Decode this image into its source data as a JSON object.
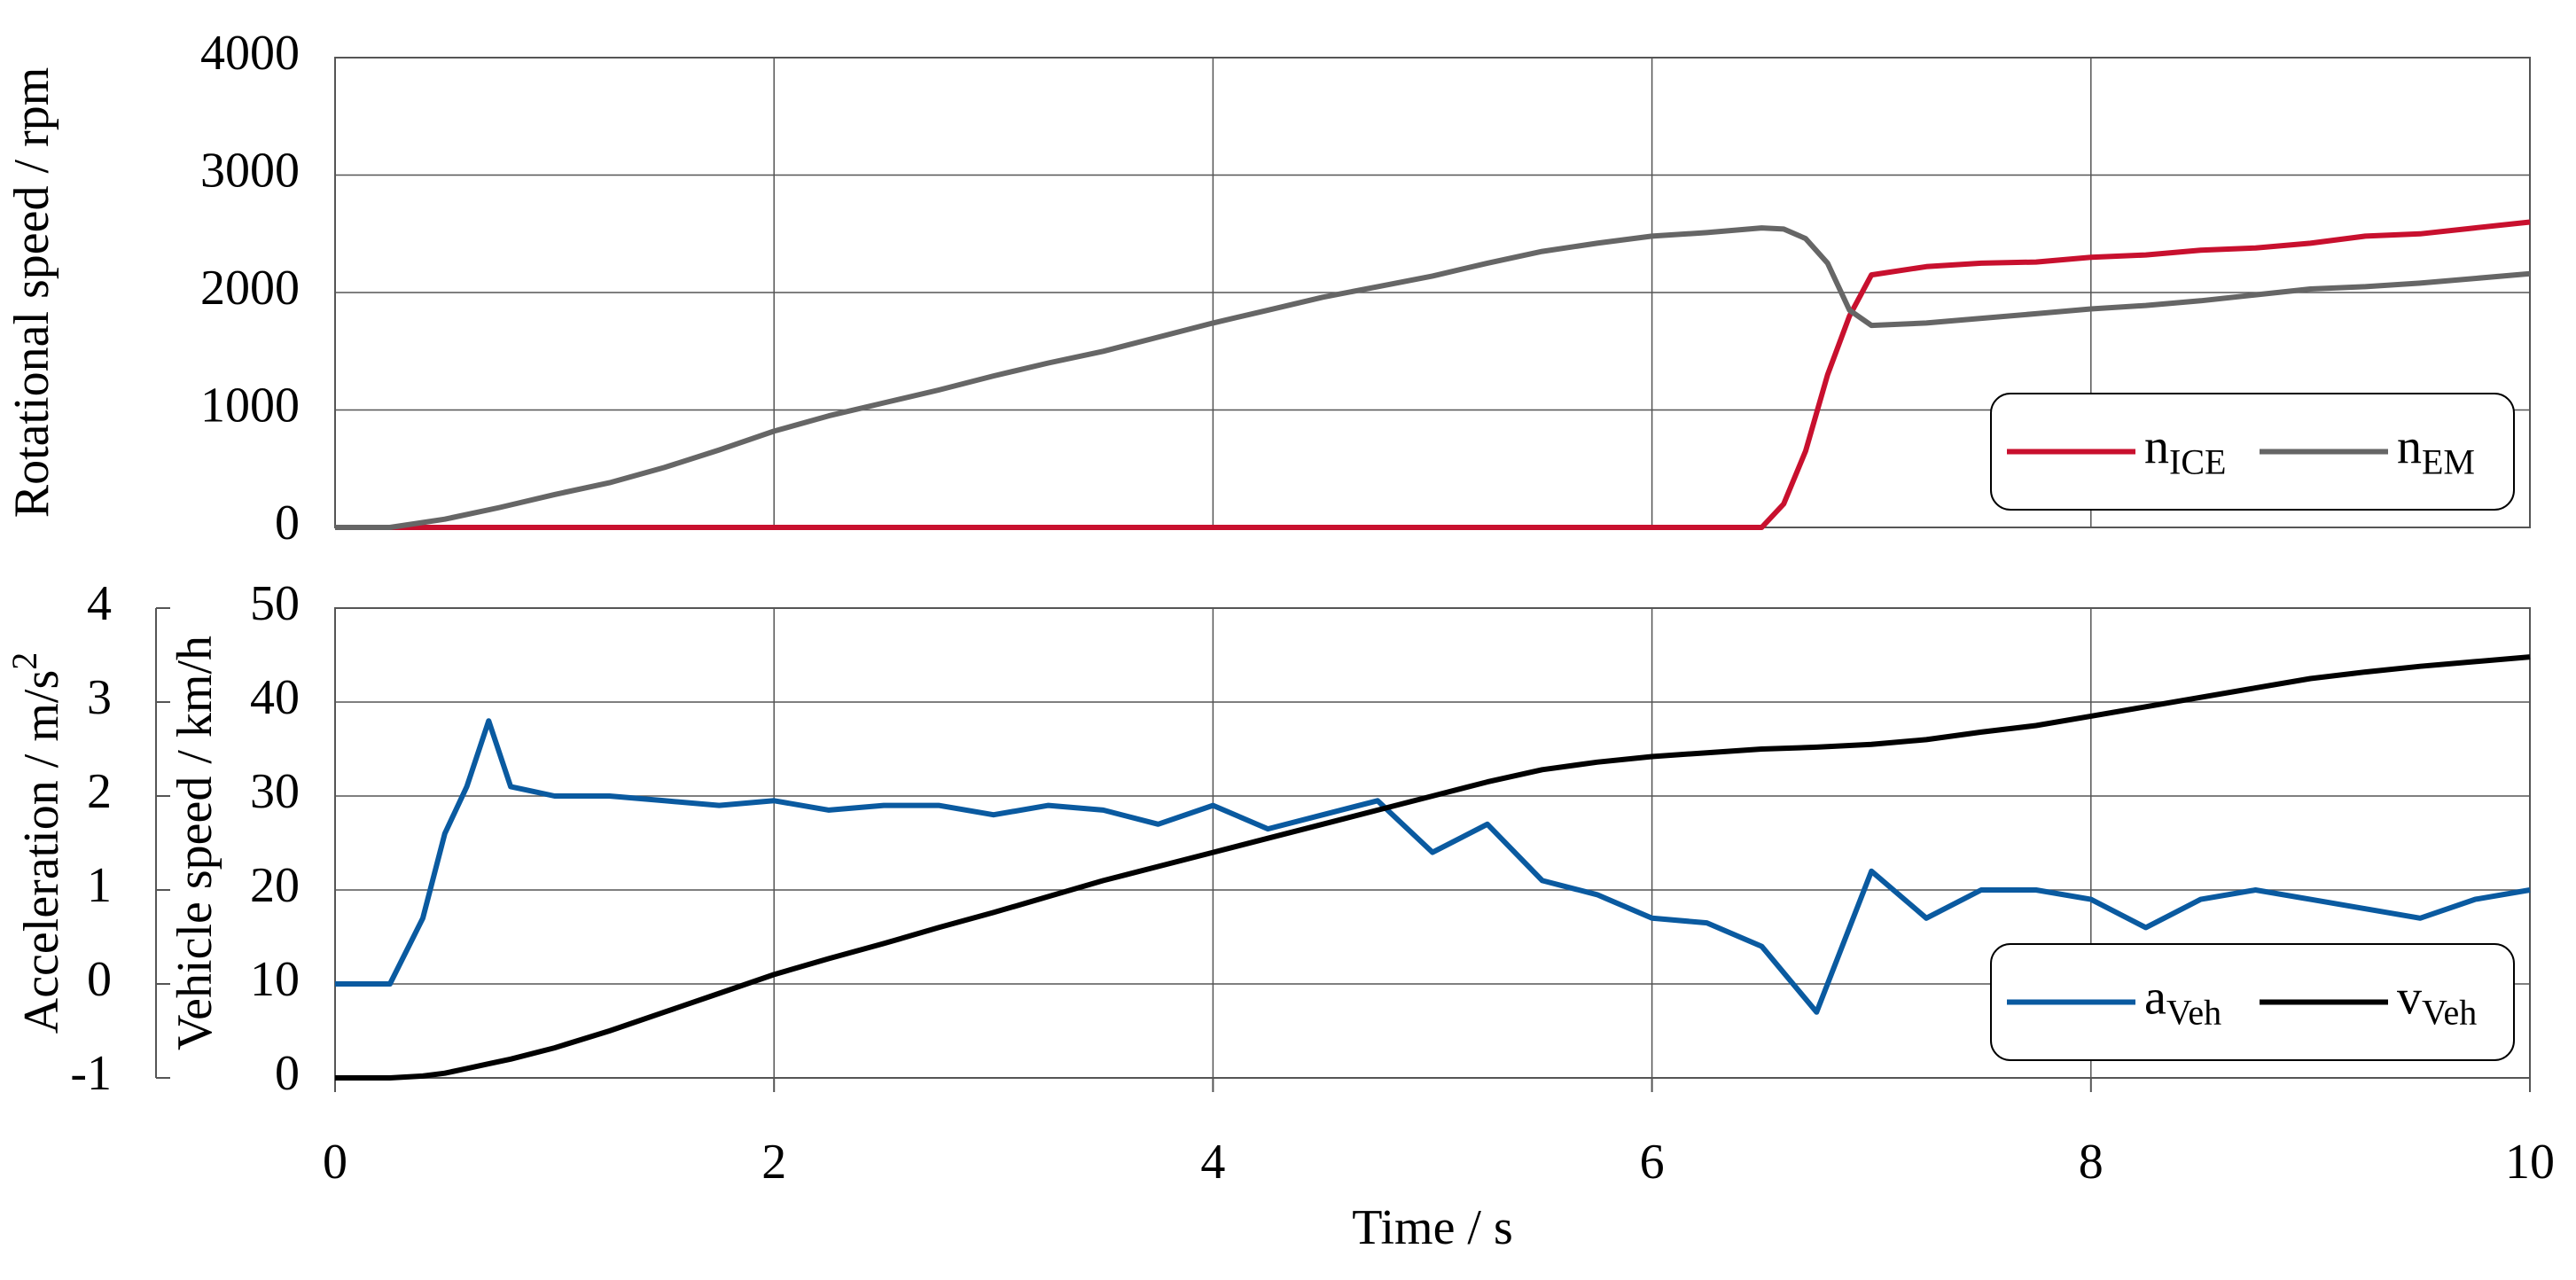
{
  "chart_data": [
    {
      "type": "line",
      "ylabel": "Rotational speed / rpm",
      "x": [
        0,
        0.25,
        0.5,
        0.75,
        1,
        1.25,
        1.5,
        1.75,
        2,
        2.25,
        2.5,
        2.75,
        3,
        3.25,
        3.5,
        3.75,
        4,
        4.25,
        4.5,
        4.75,
        5,
        5.25,
        5.5,
        5.75,
        6,
        6.25,
        6.5,
        6.6,
        6.7,
        6.8,
        6.9,
        7,
        7.25,
        7.5,
        7.75,
        8,
        8.25,
        8.5,
        8.75,
        9,
        9.25,
        9.5,
        9.75,
        10
      ],
      "series": [
        {
          "name": "n",
          "subscript": "ICE",
          "color": "#c8102e",
          "values": [
            0,
            0,
            0,
            0,
            0,
            0,
            0,
            0,
            0,
            0,
            0,
            0,
            0,
            0,
            0,
            0,
            0,
            0,
            0,
            0,
            0,
            0,
            0,
            0,
            0,
            0,
            0,
            200,
            650,
            1300,
            1800,
            2150,
            2220,
            2250,
            2260,
            2300,
            2320,
            2360,
            2380,
            2420,
            2480,
            2500,
            2550,
            2600
          ]
        },
        {
          "name": "n",
          "subscript": "EM",
          "color": "#666666",
          "values": [
            0,
            0,
            70,
            170,
            280,
            380,
            510,
            660,
            820,
            950,
            1060,
            1170,
            1290,
            1400,
            1500,
            1620,
            1740,
            1850,
            1960,
            2050,
            2140,
            2250,
            2350,
            2420,
            2480,
            2510,
            2550,
            2540,
            2460,
            2250,
            1850,
            1720,
            1740,
            1780,
            1820,
            1860,
            1890,
            1930,
            1980,
            2030,
            2050,
            2080,
            2120,
            2160
          ]
        }
      ],
      "xlim": [
        0,
        10
      ],
      "xticks": [
        0,
        2,
        4,
        6,
        8,
        10
      ],
      "ylim": [
        0,
        4000
      ],
      "yticks": [
        0,
        1000,
        2000,
        3000,
        4000
      ],
      "grid": true,
      "legend": "lower right"
    },
    {
      "type": "line",
      "xlabel": "Time / s",
      "ylabel": "Vehicle speed / km/h",
      "y2label": "Acceleration / m/s",
      "y2label_sup": "2",
      "x": [
        0,
        0.25,
        0.4,
        0.5,
        0.6,
        0.7,
        0.8,
        1,
        1.25,
        1.5,
        1.75,
        2,
        2.25,
        2.5,
        2.75,
        3,
        3.25,
        3.5,
        3.75,
        4,
        4.25,
        4.5,
        4.75,
        5,
        5.25,
        5.5,
        5.75,
        6,
        6.25,
        6.5,
        6.75,
        7,
        7.25,
        7.5,
        7.75,
        8,
        8.25,
        8.5,
        8.75,
        9,
        9.25,
        9.5,
        9.75,
        10
      ],
      "series": [
        {
          "name": "a",
          "subscript": "Veh",
          "color": "#0a5aa0",
          "axis": "y2",
          "values": [
            0,
            0,
            0.7,
            1.6,
            2.1,
            2.8,
            2.1,
            2.0,
            2.0,
            1.95,
            1.9,
            1.95,
            1.85,
            1.9,
            1.9,
            1.8,
            1.9,
            1.85,
            1.7,
            1.9,
            1.65,
            1.8,
            1.95,
            1.4,
            1.7,
            1.1,
            0.95,
            0.7,
            0.65,
            0.4,
            -0.3,
            1.2,
            0.7,
            1.0,
            1.0,
            0.9,
            0.6,
            0.9,
            1.0,
            0.9,
            0.8,
            0.7,
            0.9,
            1.0
          ]
        },
        {
          "name": "v",
          "subscript": "Veh",
          "color": "#000000",
          "values": [
            0,
            0,
            0.2,
            0.5,
            1,
            1.5,
            2,
            3.2,
            5,
            7,
            9,
            11,
            12.7,
            14.3,
            16,
            17.6,
            19.3,
            21,
            22.5,
            24,
            25.5,
            27,
            28.5,
            30,
            31.5,
            32.8,
            33.6,
            34.2,
            34.6,
            35,
            35.2,
            35.5,
            36,
            36.8,
            37.5,
            38.5,
            39.5,
            40.5,
            41.5,
            42.5,
            43.2,
            43.8,
            44.3,
            44.8
          ]
        }
      ],
      "xlim": [
        0,
        10
      ],
      "xticks": [
        0,
        2,
        4,
        6,
        8,
        10
      ],
      "ylim": [
        0,
        50
      ],
      "yticks": [
        0,
        10,
        20,
        30,
        40,
        50
      ],
      "y2lim": [
        -1,
        4
      ],
      "y2ticks": [
        -1,
        0,
        1,
        2,
        3,
        4
      ],
      "grid": true,
      "legend": "lower right"
    }
  ]
}
